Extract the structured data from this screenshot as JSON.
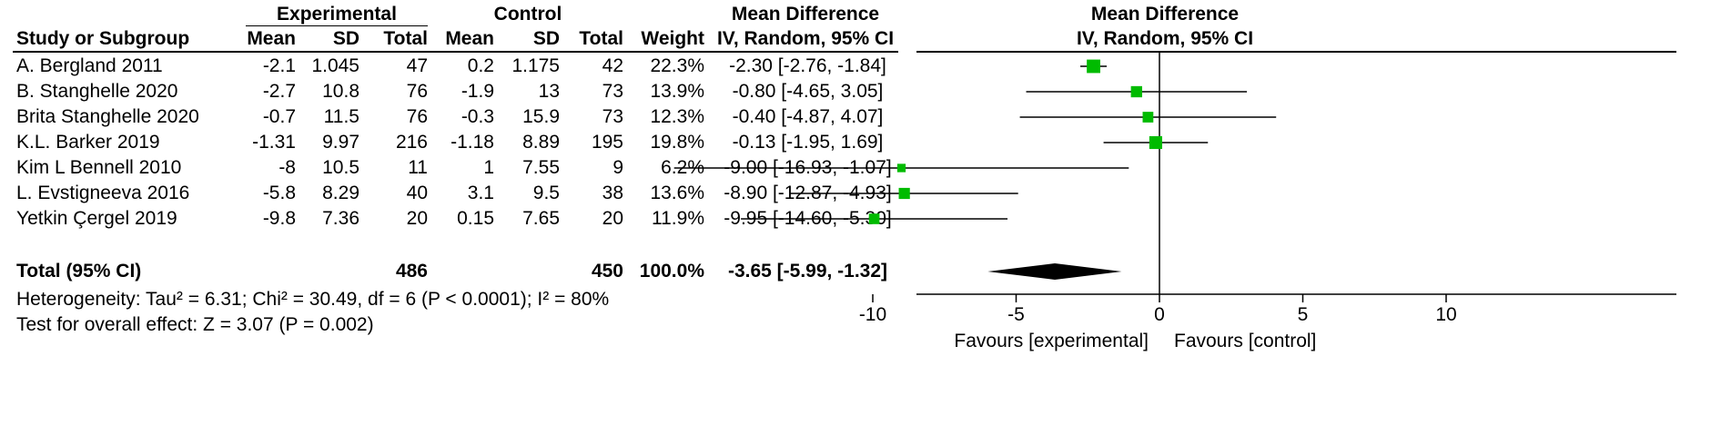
{
  "headers": {
    "group_experimental": "Experimental",
    "group_control": "Control",
    "group_mean_diff": "Mean Difference",
    "plot_title": "Mean Difference",
    "study": "Study or Subgroup",
    "mean": "Mean",
    "sd": "SD",
    "total": "Total",
    "mean_c": "Mean",
    "sd_c": "SD",
    "total_c": "Total",
    "weight": "Weight",
    "method": "IV, Random, 95% CI",
    "plot_method": "IV, Random, 95% CI"
  },
  "studies": [
    {
      "name": "A. Bergland 2011",
      "e_mean": "-2.1",
      "e_sd": "1.045",
      "e_total": "47",
      "c_mean": "0.2",
      "c_sd": "1.175",
      "c_total": "42",
      "weight": "22.3%",
      "ci": "-2.30 [-2.76, -1.84]"
    },
    {
      "name": "B. Stanghelle 2020",
      "e_mean": "-2.7",
      "e_sd": "10.8",
      "e_total": "76",
      "c_mean": "-1.9",
      "c_sd": "13",
      "c_total": "73",
      "weight": "13.9%",
      "ci": "-0.80 [-4.65, 3.05]"
    },
    {
      "name": "Brita Stanghelle 2020",
      "e_mean": "-0.7",
      "e_sd": "11.5",
      "e_total": "76",
      "c_mean": "-0.3",
      "c_sd": "15.9",
      "c_total": "73",
      "weight": "12.3%",
      "ci": "-0.40 [-4.87, 4.07]"
    },
    {
      "name": "K.L. Barker 2019",
      "e_mean": "-1.31",
      "e_sd": "9.97",
      "e_total": "216",
      "c_mean": "-1.18",
      "c_sd": "8.89",
      "c_total": "195",
      "weight": "19.8%",
      "ci": "-0.13 [-1.95, 1.69]"
    },
    {
      "name": "Kim L Bennell 2010",
      "e_mean": "-8",
      "e_sd": "10.5",
      "e_total": "11",
      "c_mean": "1",
      "c_sd": "7.55",
      "c_total": "9",
      "weight": "6.2%",
      "ci": "-9.00 [-16.93, -1.07]"
    },
    {
      "name": "L. Evstigneeva 2016",
      "e_mean": "-5.8",
      "e_sd": "8.29",
      "e_total": "40",
      "c_mean": "3.1",
      "c_sd": "9.5",
      "c_total": "38",
      "weight": "13.6%",
      "ci": "-8.90 [-12.87, -4.93]"
    },
    {
      "name": "Yetkin Çergel 2019",
      "e_mean": "-9.8",
      "e_sd": "7.36",
      "e_total": "20",
      "c_mean": "0.15",
      "c_sd": "7.65",
      "c_total": "20",
      "weight": "11.9%",
      "ci": "-9.95 [-14.60, -5.30]"
    }
  ],
  "total": {
    "label": "Total (95% CI)",
    "e_total": "486",
    "c_total": "450",
    "weight": "100.0%",
    "ci": "-3.65 [-5.99, -1.32]"
  },
  "heterogeneity": "Heterogeneity: Tau² = 6.31; Chi² = 30.49, df = 6 (P < 0.0001); I² = 80%",
  "overall_effect": "Test for overall effect: Z = 3.07 (P = 0.002)",
  "favours_left": "Favours [experimental]",
  "favours_right": "Favours [control]",
  "colors": {
    "marker": "#00bb00",
    "diamond": "#000000",
    "line": "#000000"
  },
  "chart_data": {
    "type": "forest",
    "xlim": [
      -20,
      20
    ],
    "xticks": [
      -10,
      -5,
      0,
      5,
      10
    ],
    "xtick_labels": [
      "-10",
      "-5",
      "0",
      "5",
      "10"
    ],
    "studies": [
      {
        "name": "A. Bergland 2011",
        "md": -2.3,
        "lo": -2.76,
        "hi": -1.84,
        "weight": 22.3
      },
      {
        "name": "B. Stanghelle 2020",
        "md": -0.8,
        "lo": -4.65,
        "hi": 3.05,
        "weight": 13.9
      },
      {
        "name": "Brita Stanghelle 2020",
        "md": -0.4,
        "lo": -4.87,
        "hi": 4.07,
        "weight": 12.3
      },
      {
        "name": "K.L. Barker 2019",
        "md": -0.13,
        "lo": -1.95,
        "hi": 1.69,
        "weight": 19.8
      },
      {
        "name": "Kim L Bennell 2010",
        "md": -9.0,
        "lo": -16.93,
        "hi": -1.07,
        "weight": 6.2
      },
      {
        "name": "L. Evstigneeva 2016",
        "md": -8.9,
        "lo": -12.87,
        "hi": -4.93,
        "weight": 13.6
      },
      {
        "name": "Yetkin Çergel 2019",
        "md": -9.95,
        "lo": -14.6,
        "hi": -5.3,
        "weight": 11.9
      }
    ],
    "pooled": {
      "md": -3.65,
      "lo": -5.99,
      "hi": -1.32
    }
  }
}
